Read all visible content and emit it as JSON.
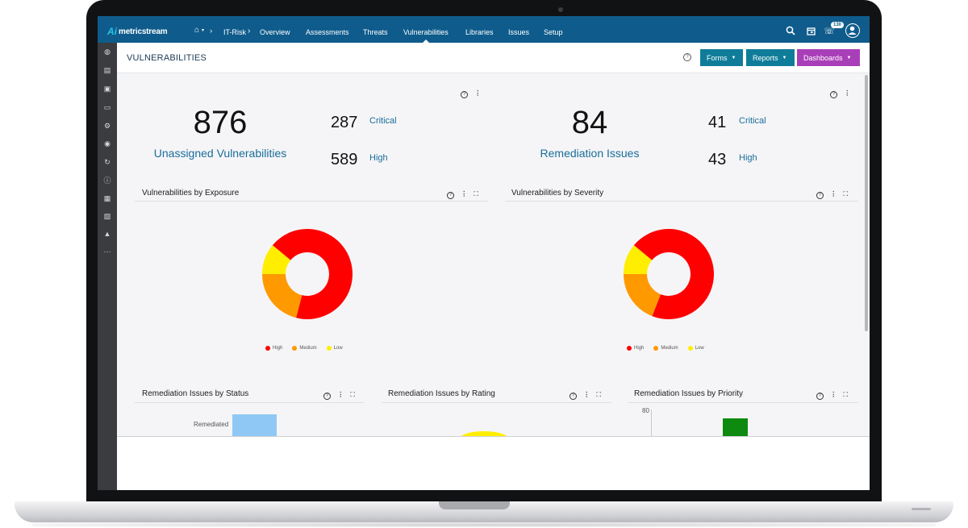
{
  "app": {
    "logo_text": "metricstream",
    "logo_mark": "Ai"
  },
  "nav": {
    "breadcrumb": "IT-Risk",
    "items": [
      {
        "label": "Overview"
      },
      {
        "label": "Assessments"
      },
      {
        "label": "Threats"
      },
      {
        "label": "Vulnerabilities",
        "active": true
      },
      {
        "label": "Libraries"
      },
      {
        "label": "Issues"
      },
      {
        "label": "Setup"
      }
    ],
    "notification_count": "130"
  },
  "header": {
    "title": "VULNERABILITIES",
    "buttons": [
      {
        "label": "Forms",
        "color": "#0f7d9a"
      },
      {
        "label": "Reports",
        "color": "#0f7d9a"
      },
      {
        "label": "Dashboards",
        "color": "#a93fb8"
      }
    ]
  },
  "kpis": {
    "vulnerabilities": {
      "total": "876",
      "label": "Unassigned Vulnerabilities",
      "critical_count": "287",
      "critical_label": "Critical",
      "high_count": "589",
      "high_label": "High"
    },
    "remediation": {
      "total": "84",
      "label": "Remediation Issues",
      "critical_count": "41",
      "critical_label": "Critical",
      "high_count": "43",
      "high_label": "High"
    }
  },
  "panels": {
    "exposure": {
      "title": "Vulnerabilities by Exposure"
    },
    "severity": {
      "title": "Vulnerabilities by Severity"
    },
    "status": {
      "title": "Remediation Issues by Status",
      "bar_label": "Remediated"
    },
    "rating": {
      "title": "Remediation Issues by Rating"
    },
    "priority": {
      "title": "Remediation Issues by Priority",
      "y_tick": "80"
    }
  },
  "chart_data": [
    {
      "type": "pie",
      "title": "Vulnerabilities by Exposure",
      "categories": [
        "High",
        "Medium",
        "Low"
      ],
      "values": [
        68,
        21,
        11
      ],
      "colors": [
        "#ff0000",
        "#ff9900",
        "#ffee00"
      ]
    },
    {
      "type": "pie",
      "title": "Vulnerabilities by Severity",
      "categories": [
        "High",
        "Medium",
        "Low"
      ],
      "values": [
        70,
        19,
        11
      ],
      "colors": [
        "#ff0000",
        "#ff9900",
        "#ffee00"
      ]
    }
  ]
}
